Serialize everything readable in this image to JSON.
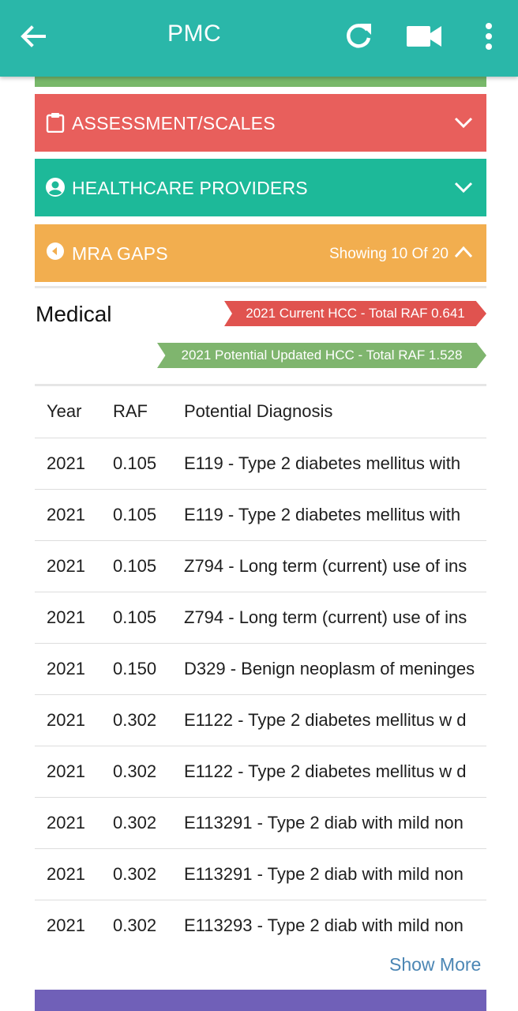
{
  "app_bar": {
    "title": "PMC",
    "icons": [
      "back-arrow-icon",
      "refresh-icon",
      "video-camera-icon",
      "more-vertical-icon"
    ],
    "color": "#2ab7a9"
  },
  "sections": {
    "assessment": {
      "label": "ASSESSMENT/SCALES",
      "color": "#e85f5c"
    },
    "providers": {
      "label": "HEALTHCARE PROVIDERS",
      "color": "#1db999"
    },
    "mra": {
      "label": "MRA GAPS",
      "showing": "Showing 10 Of 20",
      "color": "#f2ae4f"
    }
  },
  "medical": {
    "title": "Medical",
    "current_tag": "2021 Current HCC - Total RAF 0.641",
    "potential_tag": "2021 Potential Updated HCC - Total RAF 1.528"
  },
  "table": {
    "headers": {
      "year": "Year",
      "raf": "RAF",
      "diagnosis": "Potential Diagnosis"
    },
    "rows": [
      {
        "year": "2021",
        "raf": "0.105",
        "diagnosis": "E119 - Type 2 diabetes mellitus with"
      },
      {
        "year": "2021",
        "raf": "0.105",
        "diagnosis": "E119 - Type 2 diabetes mellitus with"
      },
      {
        "year": "2021",
        "raf": "0.105",
        "diagnosis": "Z794 - Long term (current) use of ins"
      },
      {
        "year": "2021",
        "raf": "0.105",
        "diagnosis": "Z794 - Long term (current) use of ins"
      },
      {
        "year": "2021",
        "raf": "0.150",
        "diagnosis": "D329 - Benign neoplasm of meninges"
      },
      {
        "year": "2021",
        "raf": "0.302",
        "diagnosis": "E1122 - Type 2 diabetes mellitus w d"
      },
      {
        "year": "2021",
        "raf": "0.302",
        "diagnosis": "E1122 - Type 2 diabetes mellitus w d"
      },
      {
        "year": "2021",
        "raf": "0.302",
        "diagnosis": "E113291 - Type 2 diab with mild non"
      },
      {
        "year": "2021",
        "raf": "0.302",
        "diagnosis": "E113291 - Type 2 diab with mild non"
      },
      {
        "year": "2021",
        "raf": "0.302",
        "diagnosis": "E113293 - Type 2 diab with mild non"
      }
    ]
  },
  "show_more": "Show More"
}
